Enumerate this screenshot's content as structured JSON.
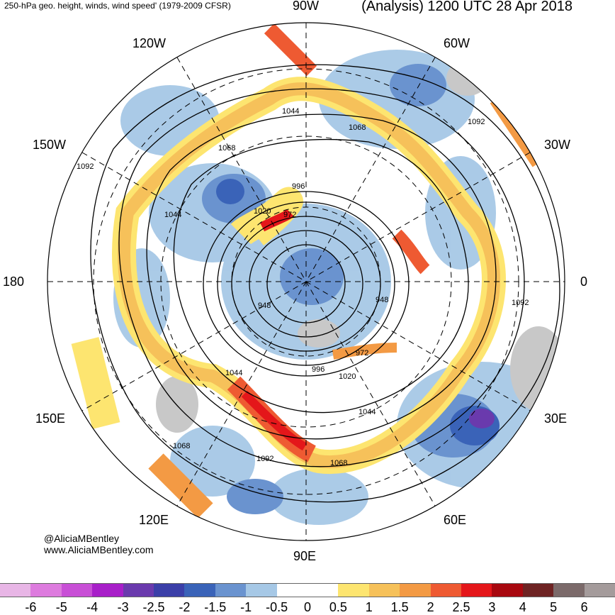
{
  "header": {
    "subtitle": "250-hPa geo. height, winds, wind speed' (1979-2009 CFSR)",
    "title": "(Analysis) 1200 UTC 28 Apr 2018"
  },
  "longitudes": {
    "n90w": "90W",
    "n60w": "60W",
    "n120w": "120W",
    "n150w": "150W",
    "n30w": "30W",
    "n180": "180",
    "n0": "0",
    "n150e": "150E",
    "n30e": "30E",
    "n120e": "120E",
    "n60e": "60E",
    "n90e": "90E"
  },
  "contour_labels": [
    "1044",
    "1068",
    "1092",
    "1092",
    "1068",
    "1044",
    "996",
    "1020",
    "972",
    "948",
    "948",
    "972",
    "996",
    "1020",
    "1044",
    "1068",
    "1092",
    "1092",
    "1068",
    "1044"
  ],
  "credit": {
    "handle": "@AliciaMBentley",
    "site": "www.AliciaMBentley.com"
  },
  "colorbar": {
    "colors": [
      "#e8b6e6",
      "#dd7bde",
      "#c84fd6",
      "#a81fc9",
      "#6a3aad",
      "#3b3fa8",
      "#3a63b8",
      "#6a93cf",
      "#a6c8e6",
      "#ffffff",
      "#ffffff",
      "#fde570",
      "#f6c15a",
      "#f39a44",
      "#ee5a32",
      "#e4161a",
      "#a8080f",
      "#6e2323",
      "#7b6a6a",
      "#a49b9b"
    ],
    "ticks": [
      "-6",
      "-5",
      "-4",
      "-3",
      "-2.5",
      "-2",
      "-1.5",
      "-1",
      "-0.5",
      "0",
      "0.5",
      "1",
      "1.5",
      "2",
      "2.5",
      "3",
      "4",
      "5",
      "6"
    ]
  }
}
